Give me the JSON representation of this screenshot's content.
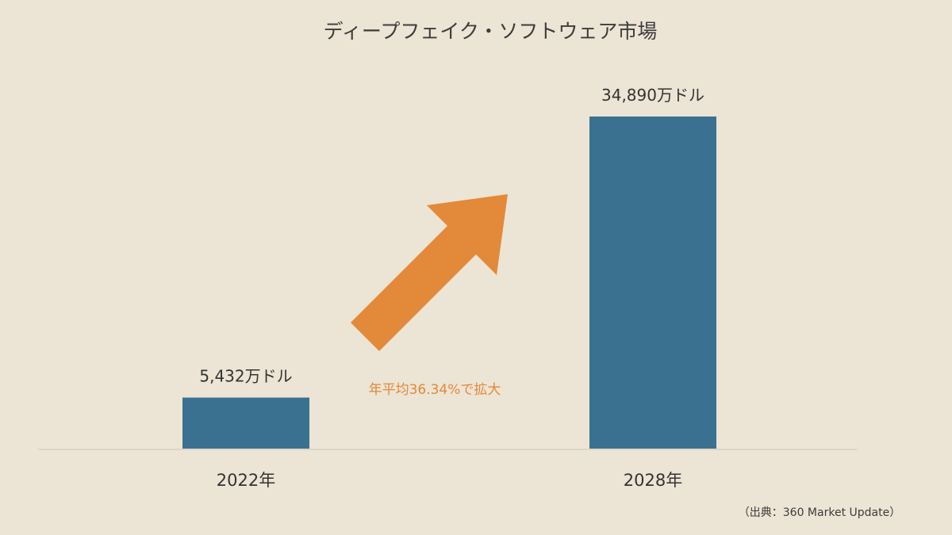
{
  "chart_data": {
    "type": "bar",
    "title": "ディープフェイク・ソフトウェア市場",
    "categories": [
      "2022年",
      "2028年"
    ],
    "values": [
      5432,
      34890
    ],
    "value_labels": [
      "5,432万ドル",
      "34,890万ドル"
    ],
    "unit": "万ドル",
    "ylim": [
      0,
      36000
    ],
    "grid": false,
    "legend": "none",
    "annotation": "年平均36.34%で拡大",
    "source": "（出典：360 Market Update）"
  },
  "colors": {
    "background": "#ece4d4",
    "bar": "#3b7190",
    "accent": "#e3893a",
    "baseline": "#ddd6c7"
  }
}
